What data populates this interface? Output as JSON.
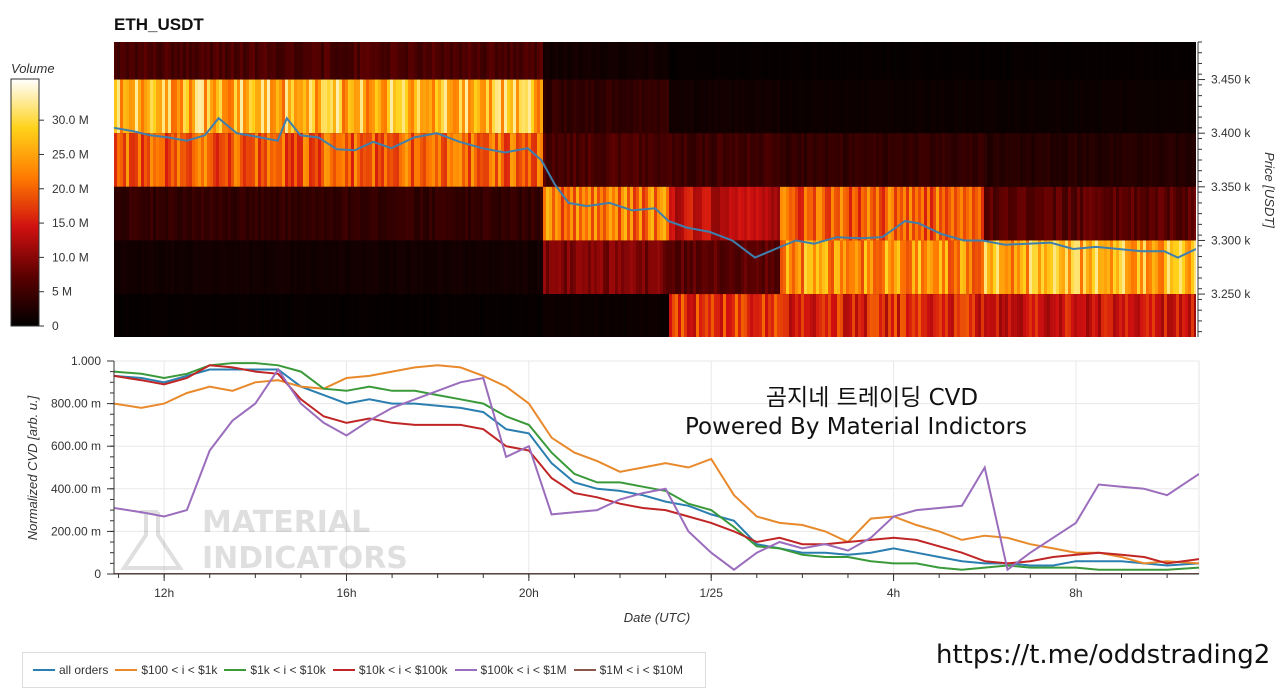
{
  "chart_data": [
    {
      "type": "heatmap",
      "title": "ETH_USDT",
      "ylabel": "Price [USDT]",
      "ylim": [
        3210,
        3485
      ],
      "y_ticks": [
        {
          "value": 3450,
          "label": "3.450 k"
        },
        {
          "value": 3400,
          "label": "3.400 k"
        },
        {
          "value": 3350,
          "label": "3.350 k"
        },
        {
          "value": 3300,
          "label": "3.300 k"
        },
        {
          "value": 3250,
          "label": "3.250 k"
        }
      ],
      "colorbar": {
        "title": "Volume",
        "range": [
          0,
          36000000
        ],
        "ticks": [
          {
            "value": 30000000,
            "label": "30.0 M"
          },
          {
            "value": 25000000,
            "label": "25.0 M"
          },
          {
            "value": 20000000,
            "label": "20.0 M"
          },
          {
            "value": 15000000,
            "label": "15.0 M"
          },
          {
            "value": 10000000,
            "label": "10.0 M"
          },
          {
            "value": 5000000,
            "label": "5 M"
          },
          {
            "value": 0,
            "label": "0"
          }
        ]
      },
      "price_bands": [
        3475,
        3425,
        3375,
        3325,
        3275,
        3225
      ],
      "x_range_hours": [
        10.9,
        34.7
      ],
      "volume_segments": [
        {
          "x_start": 10.9,
          "x_end": 20.3,
          "levels": [
            6000000,
            27000000,
            20000000,
            4000000,
            1500000,
            500000
          ]
        },
        {
          "x_start": 20.3,
          "x_end": 23.1,
          "levels": [
            1500000,
            4000000,
            6000000,
            22000000,
            9000000,
            1000000
          ]
        },
        {
          "x_start": 23.1,
          "x_end": 25.5,
          "levels": [
            500000,
            1500000,
            5000000,
            14000000,
            7000000,
            17000000
          ]
        },
        {
          "x_start": 25.5,
          "x_end": 30.0,
          "levels": [
            500000,
            1000000,
            4000000,
            20000000,
            24000000,
            16000000
          ]
        },
        {
          "x_start": 30.0,
          "x_end": 34.7,
          "levels": [
            500000,
            1000000,
            3000000,
            7000000,
            26000000,
            14000000
          ]
        }
      ],
      "price_series": {
        "x": [
          10.9,
          11.3,
          11.7,
          12.1,
          12.5,
          12.9,
          13.2,
          13.6,
          14.0,
          14.5,
          14.7,
          15.0,
          15.4,
          15.8,
          16.2,
          16.6,
          17.0,
          17.5,
          18.0,
          18.5,
          19.0,
          19.5,
          20.0,
          20.3,
          20.6,
          20.9,
          21.3,
          21.8,
          22.3,
          22.8,
          23.1,
          23.5,
          24.0,
          24.5,
          25.0,
          25.5,
          25.9,
          26.3,
          26.8,
          27.3,
          27.8,
          28.3,
          28.6,
          29.1,
          29.6,
          30.0,
          30.5,
          31.0,
          31.5,
          32.0,
          32.5,
          33.0,
          33.5,
          34.0,
          34.3,
          34.7
        ],
        "y": [
          3405,
          3402,
          3398,
          3396,
          3393,
          3398,
          3414,
          3400,
          3397,
          3393,
          3414,
          3398,
          3396,
          3385,
          3384,
          3392,
          3386,
          3396,
          3400,
          3392,
          3386,
          3382,
          3386,
          3375,
          3352,
          3335,
          3332,
          3335,
          3328,
          3330,
          3318,
          3312,
          3308,
          3300,
          3284,
          3293,
          3300,
          3297,
          3303,
          3302,
          3303,
          3318,
          3316,
          3306,
          3300,
          3300,
          3296,
          3297,
          3298,
          3292,
          3294,
          3292,
          3290,
          3290,
          3284,
          3292
        ]
      }
    },
    {
      "type": "line",
      "ylabel": "Normalized CVD [arb. u.]",
      "xlabel": "Date (UTC)",
      "ylim": [
        0,
        1.0
      ],
      "x_range_hours": [
        10.9,
        34.7
      ],
      "y_ticks": [
        {
          "value": 1.0,
          "label": "1.000"
        },
        {
          "value": 0.8,
          "label": "800.00 m"
        },
        {
          "value": 0.6,
          "label": "600.00 m"
        },
        {
          "value": 0.4,
          "label": "400.00 m"
        },
        {
          "value": 0.2,
          "label": "200.00 m"
        },
        {
          "value": 0,
          "label": "0"
        }
      ],
      "x_ticks": [
        {
          "value": 12,
          "label": "12h"
        },
        {
          "value": 16,
          "label": "16h"
        },
        {
          "value": 20,
          "label": "20h"
        },
        {
          "value": 24,
          "label": "1/25"
        },
        {
          "value": 28,
          "label": "4h"
        },
        {
          "value": 32,
          "label": "8h"
        }
      ],
      "annotations": [
        "곰지네 트레이딩 CVD",
        "Powered By Material Indictors"
      ],
      "watermark": [
        "MATERIAL",
        "INDICATORS"
      ],
      "x": [
        10.9,
        11.5,
        12.0,
        12.5,
        13.0,
        13.5,
        14.0,
        14.5,
        15.0,
        15.5,
        16.0,
        16.5,
        17.0,
        17.5,
        18.0,
        18.5,
        19.0,
        19.5,
        20.0,
        20.5,
        21.0,
        21.5,
        22.0,
        22.5,
        23.0,
        23.5,
        24.0,
        24.5,
        25.0,
        25.5,
        26.0,
        26.5,
        27.0,
        27.5,
        28.0,
        28.5,
        29.0,
        29.5,
        30.0,
        30.5,
        31.0,
        31.5,
        32.0,
        32.5,
        33.0,
        33.5,
        34.0,
        34.7
      ],
      "series": [
        {
          "name": "all orders",
          "color": "#2a7fb0",
          "values": [
            0.93,
            0.92,
            0.9,
            0.93,
            0.96,
            0.96,
            0.96,
            0.96,
            0.88,
            0.84,
            0.8,
            0.82,
            0.8,
            0.8,
            0.79,
            0.78,
            0.76,
            0.68,
            0.66,
            0.52,
            0.43,
            0.4,
            0.39,
            0.37,
            0.34,
            0.32,
            0.28,
            0.25,
            0.14,
            0.12,
            0.1,
            0.1,
            0.09,
            0.1,
            0.12,
            0.1,
            0.08,
            0.06,
            0.05,
            0.05,
            0.04,
            0.04,
            0.06,
            0.06,
            0.06,
            0.05,
            0.04,
            0.05
          ]
        },
        {
          "name": "$100 < i < $1k",
          "color": "#e8892b",
          "values": [
            0.8,
            0.78,
            0.8,
            0.85,
            0.88,
            0.86,
            0.9,
            0.91,
            0.88,
            0.87,
            0.92,
            0.93,
            0.95,
            0.97,
            0.98,
            0.97,
            0.93,
            0.88,
            0.8,
            0.64,
            0.57,
            0.53,
            0.48,
            0.5,
            0.52,
            0.5,
            0.54,
            0.37,
            0.27,
            0.24,
            0.23,
            0.2,
            0.15,
            0.26,
            0.27,
            0.23,
            0.2,
            0.16,
            0.18,
            0.17,
            0.14,
            0.12,
            0.1,
            0.1,
            0.08,
            0.05,
            0.06,
            0.05
          ]
        },
        {
          "name": "$1k < i < $10k",
          "color": "#3a9a3a",
          "values": [
            0.95,
            0.94,
            0.92,
            0.94,
            0.98,
            0.99,
            0.99,
            0.98,
            0.95,
            0.87,
            0.86,
            0.88,
            0.86,
            0.86,
            0.84,
            0.82,
            0.8,
            0.74,
            0.7,
            0.57,
            0.47,
            0.43,
            0.43,
            0.41,
            0.39,
            0.33,
            0.3,
            0.22,
            0.13,
            0.12,
            0.09,
            0.08,
            0.08,
            0.06,
            0.05,
            0.05,
            0.03,
            0.02,
            0.03,
            0.04,
            0.03,
            0.03,
            0.03,
            0.02,
            0.02,
            0.02,
            0.02,
            0.03
          ]
        },
        {
          "name": "$10k < i < $100k",
          "color": "#c02626",
          "values": [
            0.93,
            0.91,
            0.89,
            0.92,
            0.98,
            0.97,
            0.95,
            0.94,
            0.82,
            0.74,
            0.71,
            0.73,
            0.71,
            0.7,
            0.7,
            0.7,
            0.68,
            0.6,
            0.58,
            0.45,
            0.38,
            0.36,
            0.33,
            0.31,
            0.3,
            0.27,
            0.24,
            0.2,
            0.15,
            0.17,
            0.14,
            0.14,
            0.15,
            0.16,
            0.17,
            0.16,
            0.13,
            0.1,
            0.06,
            0.05,
            0.06,
            0.08,
            0.09,
            0.1,
            0.09,
            0.08,
            0.05,
            0.07
          ]
        },
        {
          "name": "$100k < i < $1M",
          "color": "#9b6dbd",
          "values": [
            0.31,
            0.29,
            0.27,
            0.3,
            0.58,
            0.72,
            0.8,
            0.96,
            0.8,
            0.71,
            0.65,
            0.72,
            0.78,
            0.82,
            0.86,
            0.9,
            0.92,
            0.55,
            0.6,
            0.28,
            0.29,
            0.3,
            0.35,
            0.38,
            0.4,
            0.2,
            0.1,
            0.02,
            0.1,
            0.15,
            0.12,
            0.14,
            0.11,
            0.17,
            0.27,
            0.3,
            0.31,
            0.32,
            0.5,
            0.02,
            0.1,
            0.17,
            0.24,
            0.42,
            0.41,
            0.4,
            0.37,
            0.47
          ]
        },
        {
          "name": "$1M < i < $10M",
          "color": "#8c564b",
          "values": [
            0.0,
            0.0,
            0.0,
            0.0,
            0.0,
            0.0,
            0.0,
            0.0,
            0.0,
            0.0,
            0.0,
            0.0,
            0.0,
            0.0,
            0.0,
            0.0,
            0.0,
            0.0,
            0.0,
            0.0,
            0.0,
            0.0,
            0.0,
            0.0,
            0.0,
            0.0,
            0.0,
            0.0,
            0.0,
            0.0,
            0.0,
            0.0,
            0.0,
            0.0,
            0.0,
            0.0,
            0.0,
            0.0,
            0.0,
            0.0,
            0.0,
            0.0,
            0.0,
            0.0,
            0.0,
            0.0,
            0.0,
            0.0
          ]
        }
      ]
    }
  ],
  "legend": [
    {
      "label": "all orders",
      "color": "#2a7fb0"
    },
    {
      "label": "$100 < i < $1k",
      "color": "#e8892b"
    },
    {
      "label": "$1k < i < $10k",
      "color": "#3a9a3a"
    },
    {
      "label": "$10k < i < $100k",
      "color": "#c02626"
    },
    {
      "label": "$100k < i < $1M",
      "color": "#9b6dbd"
    },
    {
      "label": "$1M < i < $10M",
      "color": "#8c564b"
    }
  ],
  "footer": {
    "link_text": "https://t.me/oddstrading2"
  }
}
